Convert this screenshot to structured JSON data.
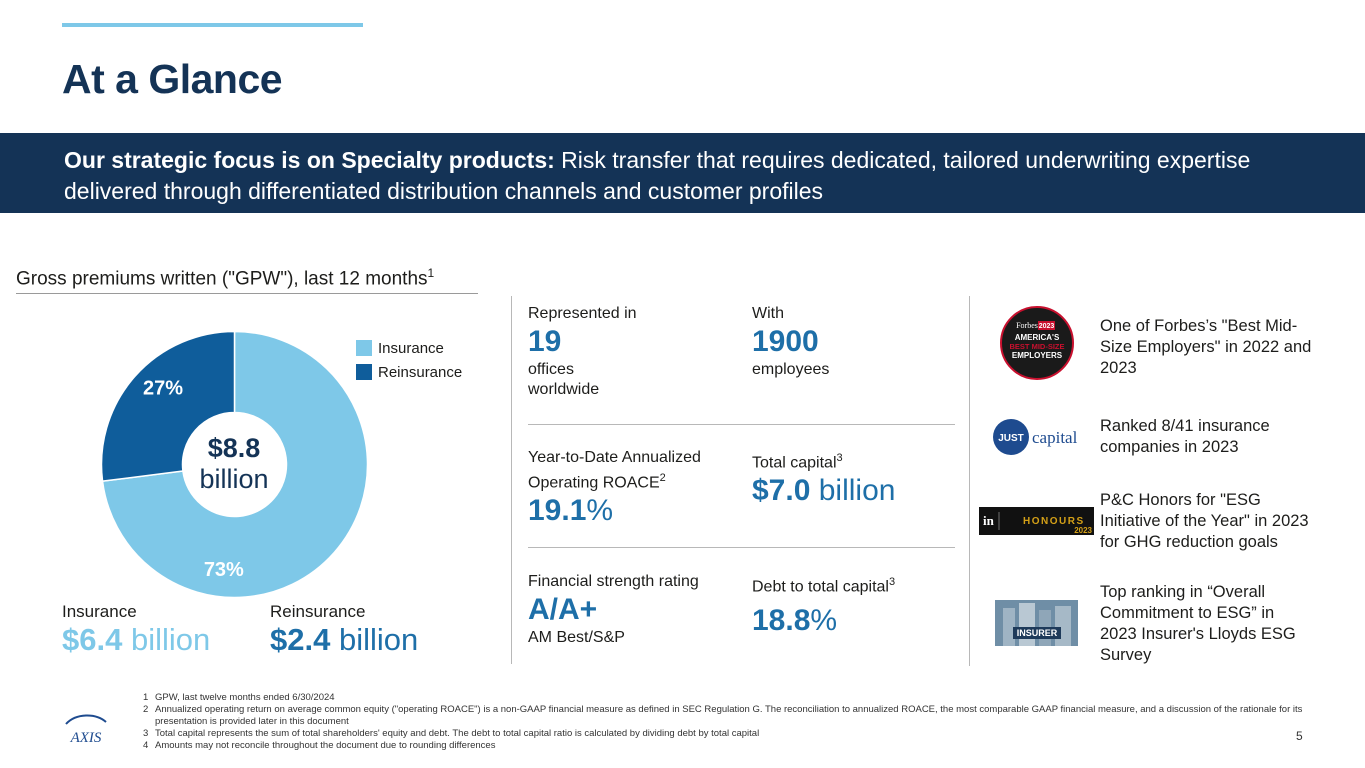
{
  "page": {
    "title": "At a Glance",
    "page_number": "5"
  },
  "banner": {
    "bold": "Our strategic focus is on Specialty products:",
    "rest": " Risk transfer that requires dedicated, tailored underwriting expertise delivered through differentiated distribution channels and customer profiles"
  },
  "gpw": {
    "heading": "Gross premiums written (\"GPW\"), last 12 months",
    "heading_sup": "1",
    "total_amount": "$8.8",
    "total_unit": "billion",
    "legend": [
      {
        "label": "Insurance",
        "color": "#7ec8e8"
      },
      {
        "label": "Reinsurance",
        "color": "#0f5d9b"
      }
    ],
    "slices": [
      {
        "name": "Insurance",
        "percent": 73,
        "label": "73%",
        "color": "#7ec8e8"
      },
      {
        "name": "Reinsurance",
        "percent": 27,
        "label": "27%",
        "color": "#0f5d9b"
      }
    ],
    "segments": {
      "insurance": {
        "name": "Insurance",
        "amount": "$6.4",
        "unit": " billion"
      },
      "reinsurance": {
        "name": "Reinsurance",
        "amount": "$2.4",
        "unit": " billion"
      }
    }
  },
  "stats": {
    "offices": {
      "label": "Represented in",
      "value": "19",
      "sub1": "offices",
      "sub2": "worldwide"
    },
    "employees": {
      "label": "With",
      "value": "1900",
      "sub": "employees"
    },
    "roace": {
      "label1": "Year-to-Date Annualized",
      "label2": "Operating ROACE",
      "label2_sup": "2",
      "value": "19.1",
      "unit": "%"
    },
    "capital": {
      "label": "Total capital",
      "label_sup": "3",
      "value": "$7.0",
      "unit": " billion"
    },
    "rating": {
      "label": "Financial strength rating",
      "value": "A/A+",
      "sub": "AM Best/S&P"
    },
    "debt": {
      "label": "Debt to total capital",
      "label_sup": "3",
      "value": "18.8",
      "unit": "%"
    }
  },
  "awards": [
    {
      "icon": "forbes-badge-icon",
      "text": "One of Forbes’s \"Best Mid-Size Employers\" in 2022 and 2023",
      "logo_lines": [
        "Forbes",
        "2023",
        "AMERICA'S",
        "BEST MID-SIZE",
        "EMPLOYERS"
      ]
    },
    {
      "icon": "just-capital-logo-icon",
      "text": "Ranked 8/41 insurance companies in 2023",
      "logo_lines": [
        "JUST",
        "capital"
      ]
    },
    {
      "icon": "insurance-insider-honours-logo-icon",
      "text": "P&C Honors for \"ESG Initiative of the Year\" in 2023 for GHG reduction goals",
      "logo_lines": [
        "in",
        "HONOURS",
        "2023"
      ]
    },
    {
      "icon": "insurer-survey-logo-icon",
      "text": "Top ranking in “Overall Commitment to ESG” in 2023 Insurer's Lloyds ESG Survey",
      "logo_lines": [
        "INSURER"
      ]
    }
  ],
  "footnotes": [
    {
      "num": "1",
      "text": "GPW, last twelve months ended 6/30/2024"
    },
    {
      "num": "2",
      "text": "Annualized operating return on average common equity (\"operating ROACE\") is a non-GAAP financial measure as defined in SEC Regulation G. The reconciliation to annualized ROACE, the most comparable GAAP financial measure, and a discussion of the rationale for its presentation is provided later in this document"
    },
    {
      "num": "3",
      "text": "Total capital represents the sum of total shareholders' equity and debt. The debt to total capital ratio is calculated by dividing debt by total capital"
    },
    {
      "num": "4",
      "text": "Amounts may not reconcile throughout the document due to rounding differences"
    }
  ],
  "brand": {
    "logo_text": "AXIS"
  }
}
